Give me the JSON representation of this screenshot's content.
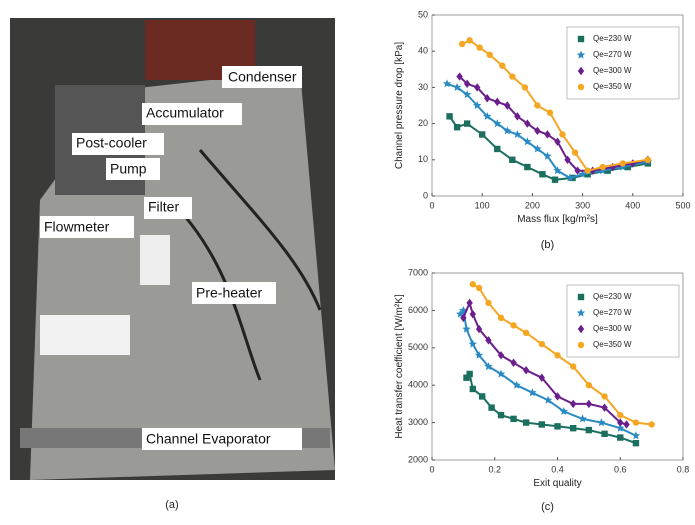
{
  "photo": {
    "labels": [
      "Condenser",
      "Accumulator",
      "Post-cooler",
      "Pump",
      "Filter",
      "Flowmeter",
      "Pre-heater",
      "Channel Evaporator"
    ],
    "caption": "(a)"
  },
  "chart_data": [
    {
      "type": "line",
      "caption": "(b)",
      "x_label": "Mass flux [kg/m²s]",
      "y_label": "Channel pressure drop [kPa]",
      "xlim": [
        0,
        500
      ],
      "xticks": [
        0,
        100,
        200,
        300,
        400,
        500
      ],
      "ylim": [
        0,
        50
      ],
      "yticks": [
        0,
        10,
        20,
        30,
        40,
        50
      ],
      "legend": "upper right",
      "series": [
        {
          "name": "Qe=230 W",
          "color": "#1b6f5f",
          "marker": "square",
          "x": [
            35,
            50,
            70,
            100,
            130,
            160,
            190,
            220,
            245,
            280,
            310,
            350,
            390,
            430
          ],
          "values": [
            22,
            19,
            20,
            17,
            13,
            10,
            8,
            6,
            4.5,
            5,
            6,
            7,
            8,
            9
          ]
        },
        {
          "name": "Qe=270 W",
          "color": "#2a8bc4",
          "marker": "star",
          "x": [
            30,
            50,
            70,
            90,
            110,
            130,
            150,
            170,
            190,
            210,
            230,
            250,
            275,
            300,
            340,
            380,
            430
          ],
          "values": [
            31,
            30,
            28,
            25,
            22,
            20,
            18,
            17,
            15,
            13,
            11,
            7,
            5,
            6,
            7,
            8,
            9.5
          ]
        },
        {
          "name": "Qe=300 W",
          "color": "#6b1f8c",
          "marker": "diamond",
          "x": [
            55,
            70,
            90,
            110,
            130,
            150,
            170,
            190,
            210,
            230,
            250,
            270,
            290,
            320,
            360,
            400,
            430
          ],
          "values": [
            33,
            31,
            30,
            27,
            26,
            25,
            22,
            20,
            18,
            17,
            15,
            10,
            7,
            7,
            8,
            9,
            10
          ]
        },
        {
          "name": "Qe=350 W",
          "color": "#f5a623",
          "marker": "circle",
          "x": [
            60,
            75,
            95,
            115,
            140,
            160,
            185,
            210,
            235,
            260,
            285,
            310,
            340,
            380,
            430
          ],
          "values": [
            42,
            43,
            41,
            39,
            36,
            33,
            30,
            25,
            23,
            17,
            12,
            7,
            8,
            9,
            10
          ]
        }
      ]
    },
    {
      "type": "line",
      "caption": "(c)",
      "x_label": "Exit quality",
      "y_label": "Heat transfer coefficient [W/m²K]",
      "xlim": [
        0,
        0.8
      ],
      "xticks": [
        0,
        0.2,
        0.4,
        0.6,
        0.8
      ],
      "ylim": [
        2000,
        7000
      ],
      "yticks": [
        2000,
        3000,
        4000,
        5000,
        6000,
        7000
      ],
      "legend": "upper right",
      "series": [
        {
          "name": "Qe=230 W",
          "color": "#1b6f5f",
          "marker": "square",
          "x": [
            0.11,
            0.12,
            0.13,
            0.16,
            0.19,
            0.22,
            0.26,
            0.3,
            0.35,
            0.4,
            0.45,
            0.5,
            0.55,
            0.6,
            0.65
          ],
          "values": [
            4200,
            4300,
            3900,
            3700,
            3400,
            3200,
            3100,
            3000,
            2950,
            2900,
            2850,
            2800,
            2700,
            2600,
            2450
          ]
        },
        {
          "name": "Qe=270 W",
          "color": "#2a8bc4",
          "marker": "star",
          "x": [
            0.09,
            0.1,
            0.11,
            0.13,
            0.15,
            0.18,
            0.22,
            0.27,
            0.32,
            0.37,
            0.42,
            0.48,
            0.54,
            0.6,
            0.65
          ],
          "values": [
            5900,
            6000,
            5500,
            5100,
            4800,
            4500,
            4300,
            4000,
            3800,
            3600,
            3300,
            3100,
            3000,
            2850,
            2650
          ]
        },
        {
          "name": "Qe=300 W",
          "color": "#6b1f8c",
          "marker": "diamond",
          "x": [
            0.1,
            0.12,
            0.13,
            0.15,
            0.18,
            0.22,
            0.26,
            0.3,
            0.35,
            0.4,
            0.45,
            0.5,
            0.55,
            0.6,
            0.62
          ],
          "values": [
            5800,
            6200,
            5900,
            5500,
            5200,
            4800,
            4600,
            4400,
            4200,
            3700,
            3500,
            3500,
            3400,
            3000,
            2950
          ]
        },
        {
          "name": "Qe=350 W",
          "color": "#f5a623",
          "marker": "circle",
          "x": [
            0.13,
            0.15,
            0.18,
            0.22,
            0.26,
            0.3,
            0.35,
            0.4,
            0.45,
            0.5,
            0.55,
            0.6,
            0.65,
            0.7
          ],
          "values": [
            6700,
            6600,
            6200,
            5800,
            5600,
            5400,
            5100,
            4800,
            4500,
            4000,
            3700,
            3200,
            3000,
            2950
          ]
        }
      ]
    }
  ]
}
